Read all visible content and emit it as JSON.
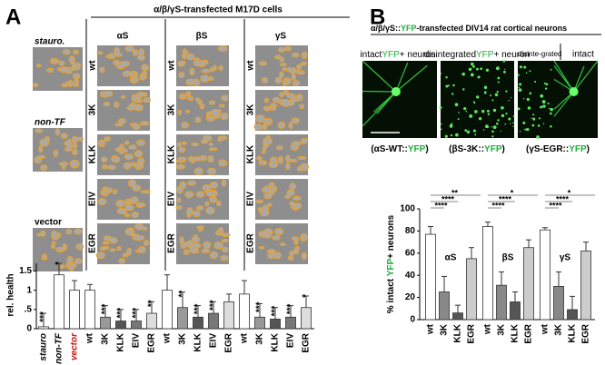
{
  "panel_a": {
    "label": "A",
    "title": "α/β/γS-transfected M17D cells",
    "left_labels": [
      "stauro.",
      "non-TF",
      "vector"
    ],
    "column_headers": [
      "αS",
      "βS",
      "γS"
    ],
    "row_labels": [
      "wt",
      "3K",
      "KLK",
      "EIV",
      "EGR"
    ]
  },
  "panel_b": {
    "label": "B",
    "title_parts": [
      "α/β/γS::",
      "YFP",
      "-transfected DIV14 rat cortical neurons"
    ],
    "image_labels": {
      "intact": [
        "intact",
        "YFP",
        "+ neuron"
      ],
      "disintegrated": [
        "disintegrated",
        "YFP",
        "+ neuron"
      ],
      "right_left": "disinte-grated",
      "right_right": "intact"
    },
    "captions": [
      [
        "(αS-WT::",
        "YFP",
        ")"
      ],
      [
        "(βS-3K::",
        "YFP",
        ")"
      ],
      [
        "(γS-EGR::",
        "YFP",
        ")"
      ]
    ]
  },
  "chart_data": [
    {
      "type": "bar",
      "y_label": "rel. health",
      "categories": [
        "stauro",
        "non-TF",
        "vector",
        "wt",
        "3K",
        "KLK",
        "EIV",
        "EGR",
        "wt",
        "3K",
        "KLK",
        "EIV",
        "EGR",
        "wt",
        "3K",
        "KLK",
        "EIV",
        "EGR"
      ],
      "values": [
        0.05,
        1.4,
        1.0,
        1.0,
        0.3,
        0.2,
        0.2,
        0.4,
        1.0,
        0.55,
        0.3,
        0.4,
        0.7,
        0.9,
        0.3,
        0.25,
        0.3,
        0.55
      ],
      "errors": [
        0.35,
        0.3,
        0.25,
        0.15,
        0.3,
        0.3,
        0.3,
        0.3,
        0.4,
        0.4,
        0.3,
        0.3,
        0.2,
        0.35,
        0.35,
        0.3,
        0.3,
        0.3
      ],
      "colors": [
        "#ffffff",
        "#ffffff",
        "#ffffff",
        "#ffffff",
        "#999999",
        "#555555",
        "#777777",
        "#dddddd",
        "#ffffff",
        "#999999",
        "#555555",
        "#777777",
        "#dddddd",
        "#ffffff",
        "#999999",
        "#555555",
        "#777777",
        "#dddddd"
      ],
      "annotations": [
        "***",
        "*",
        null,
        null,
        "***",
        "***",
        "***",
        "**",
        null,
        "**",
        "***",
        "***",
        null,
        null,
        "***",
        "***",
        "***",
        "*"
      ],
      "ylim": [
        0,
        1.7
      ],
      "yticks": [
        0,
        {
          "value": 0.5,
          "label": ".5"
        },
        1,
        1.5
      ]
    },
    {
      "type": "bar",
      "y_label_parts": [
        "% intact ",
        "YFP",
        "+ neurons"
      ],
      "categories": [
        "wt",
        "3K",
        "KLK",
        "EGR",
        "wt",
        "3K",
        "KLK",
        "EGR",
        "wt",
        "3K",
        "KLK",
        "EGR"
      ],
      "group_labels": [
        "αS",
        "βS",
        "γS"
      ],
      "values": [
        77,
        25,
        6,
        55,
        84,
        31,
        16,
        65,
        81,
        30,
        9,
        62
      ],
      "errors": [
        7,
        14,
        7,
        10,
        4,
        12,
        9,
        7,
        2,
        13,
        12,
        8
      ],
      "colors": [
        "#ffffff",
        "#888888",
        "#555555",
        "#cccccc",
        "#ffffff",
        "#888888",
        "#555555",
        "#cccccc",
        "#ffffff",
        "#888888",
        "#555555",
        "#cccccc"
      ],
      "brackets": [
        [
          "**",
          "****",
          "****"
        ],
        [
          "*",
          "****",
          "****"
        ],
        [
          "*",
          "****",
          "****"
        ]
      ],
      "ylim": [
        0,
        100
      ],
      "yticks": [
        0,
        20,
        40,
        60,
        80,
        100
      ]
    }
  ]
}
